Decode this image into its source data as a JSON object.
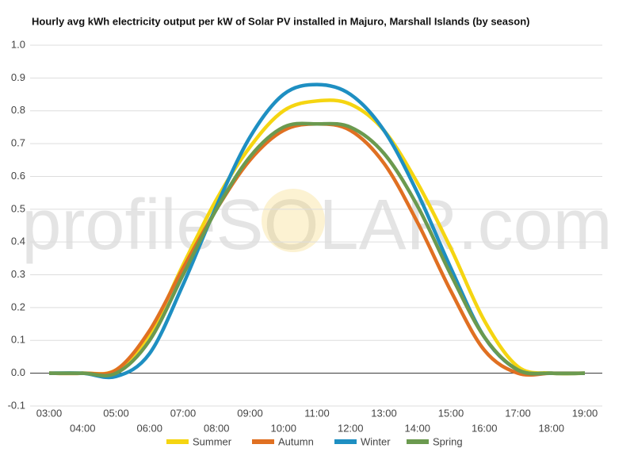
{
  "chart_data": {
    "type": "line",
    "title": "Hourly avg kWh electricity output per kW of Solar PV installed in Majuro, Marshall Islands (by season)",
    "watermark": "profileSOLAR.com",
    "categories": [
      "03:00",
      "04:00",
      "05:00",
      "06:00",
      "07:00",
      "08:00",
      "09:00",
      "10:00",
      "11:00",
      "12:00",
      "13:00",
      "14:00",
      "15:00",
      "16:00",
      "17:00",
      "18:00",
      "19:00"
    ],
    "series": [
      {
        "name": "Summer",
        "color": "#f5d511",
        "values": [
          0,
          0,
          0.01,
          0.12,
          0.33,
          0.53,
          0.69,
          0.8,
          0.83,
          0.82,
          0.74,
          0.58,
          0.38,
          0.16,
          0.02,
          0,
          0
        ]
      },
      {
        "name": "Autumn",
        "color": "#e07022",
        "values": [
          0,
          0,
          0.01,
          0.13,
          0.32,
          0.5,
          0.65,
          0.74,
          0.76,
          0.74,
          0.64,
          0.46,
          0.25,
          0.07,
          0,
          0,
          0
        ]
      },
      {
        "name": "Winter",
        "color": "#1e8fc2",
        "values": [
          0,
          0,
          -0.01,
          0.06,
          0.27,
          0.51,
          0.72,
          0.85,
          0.88,
          0.85,
          0.74,
          0.55,
          0.32,
          0.11,
          0.01,
          0,
          0
        ]
      },
      {
        "name": "Spring",
        "color": "#6b9a4f",
        "values": [
          0,
          0,
          0,
          0.1,
          0.3,
          0.5,
          0.66,
          0.75,
          0.76,
          0.75,
          0.67,
          0.51,
          0.3,
          0.11,
          0.01,
          0,
          0
        ]
      }
    ],
    "ylim": [
      -0.1,
      1.0
    ],
    "yticks": [
      -0.1,
      {
        "value": 0,
        "label": "0.0"
      },
      0.1,
      0.2,
      0.3,
      0.4,
      0.5,
      0.6,
      0.7,
      0.8,
      0.9,
      {
        "value": 1,
        "label": "1.0"
      }
    ],
    "grid": true,
    "legend": "bottom"
  }
}
